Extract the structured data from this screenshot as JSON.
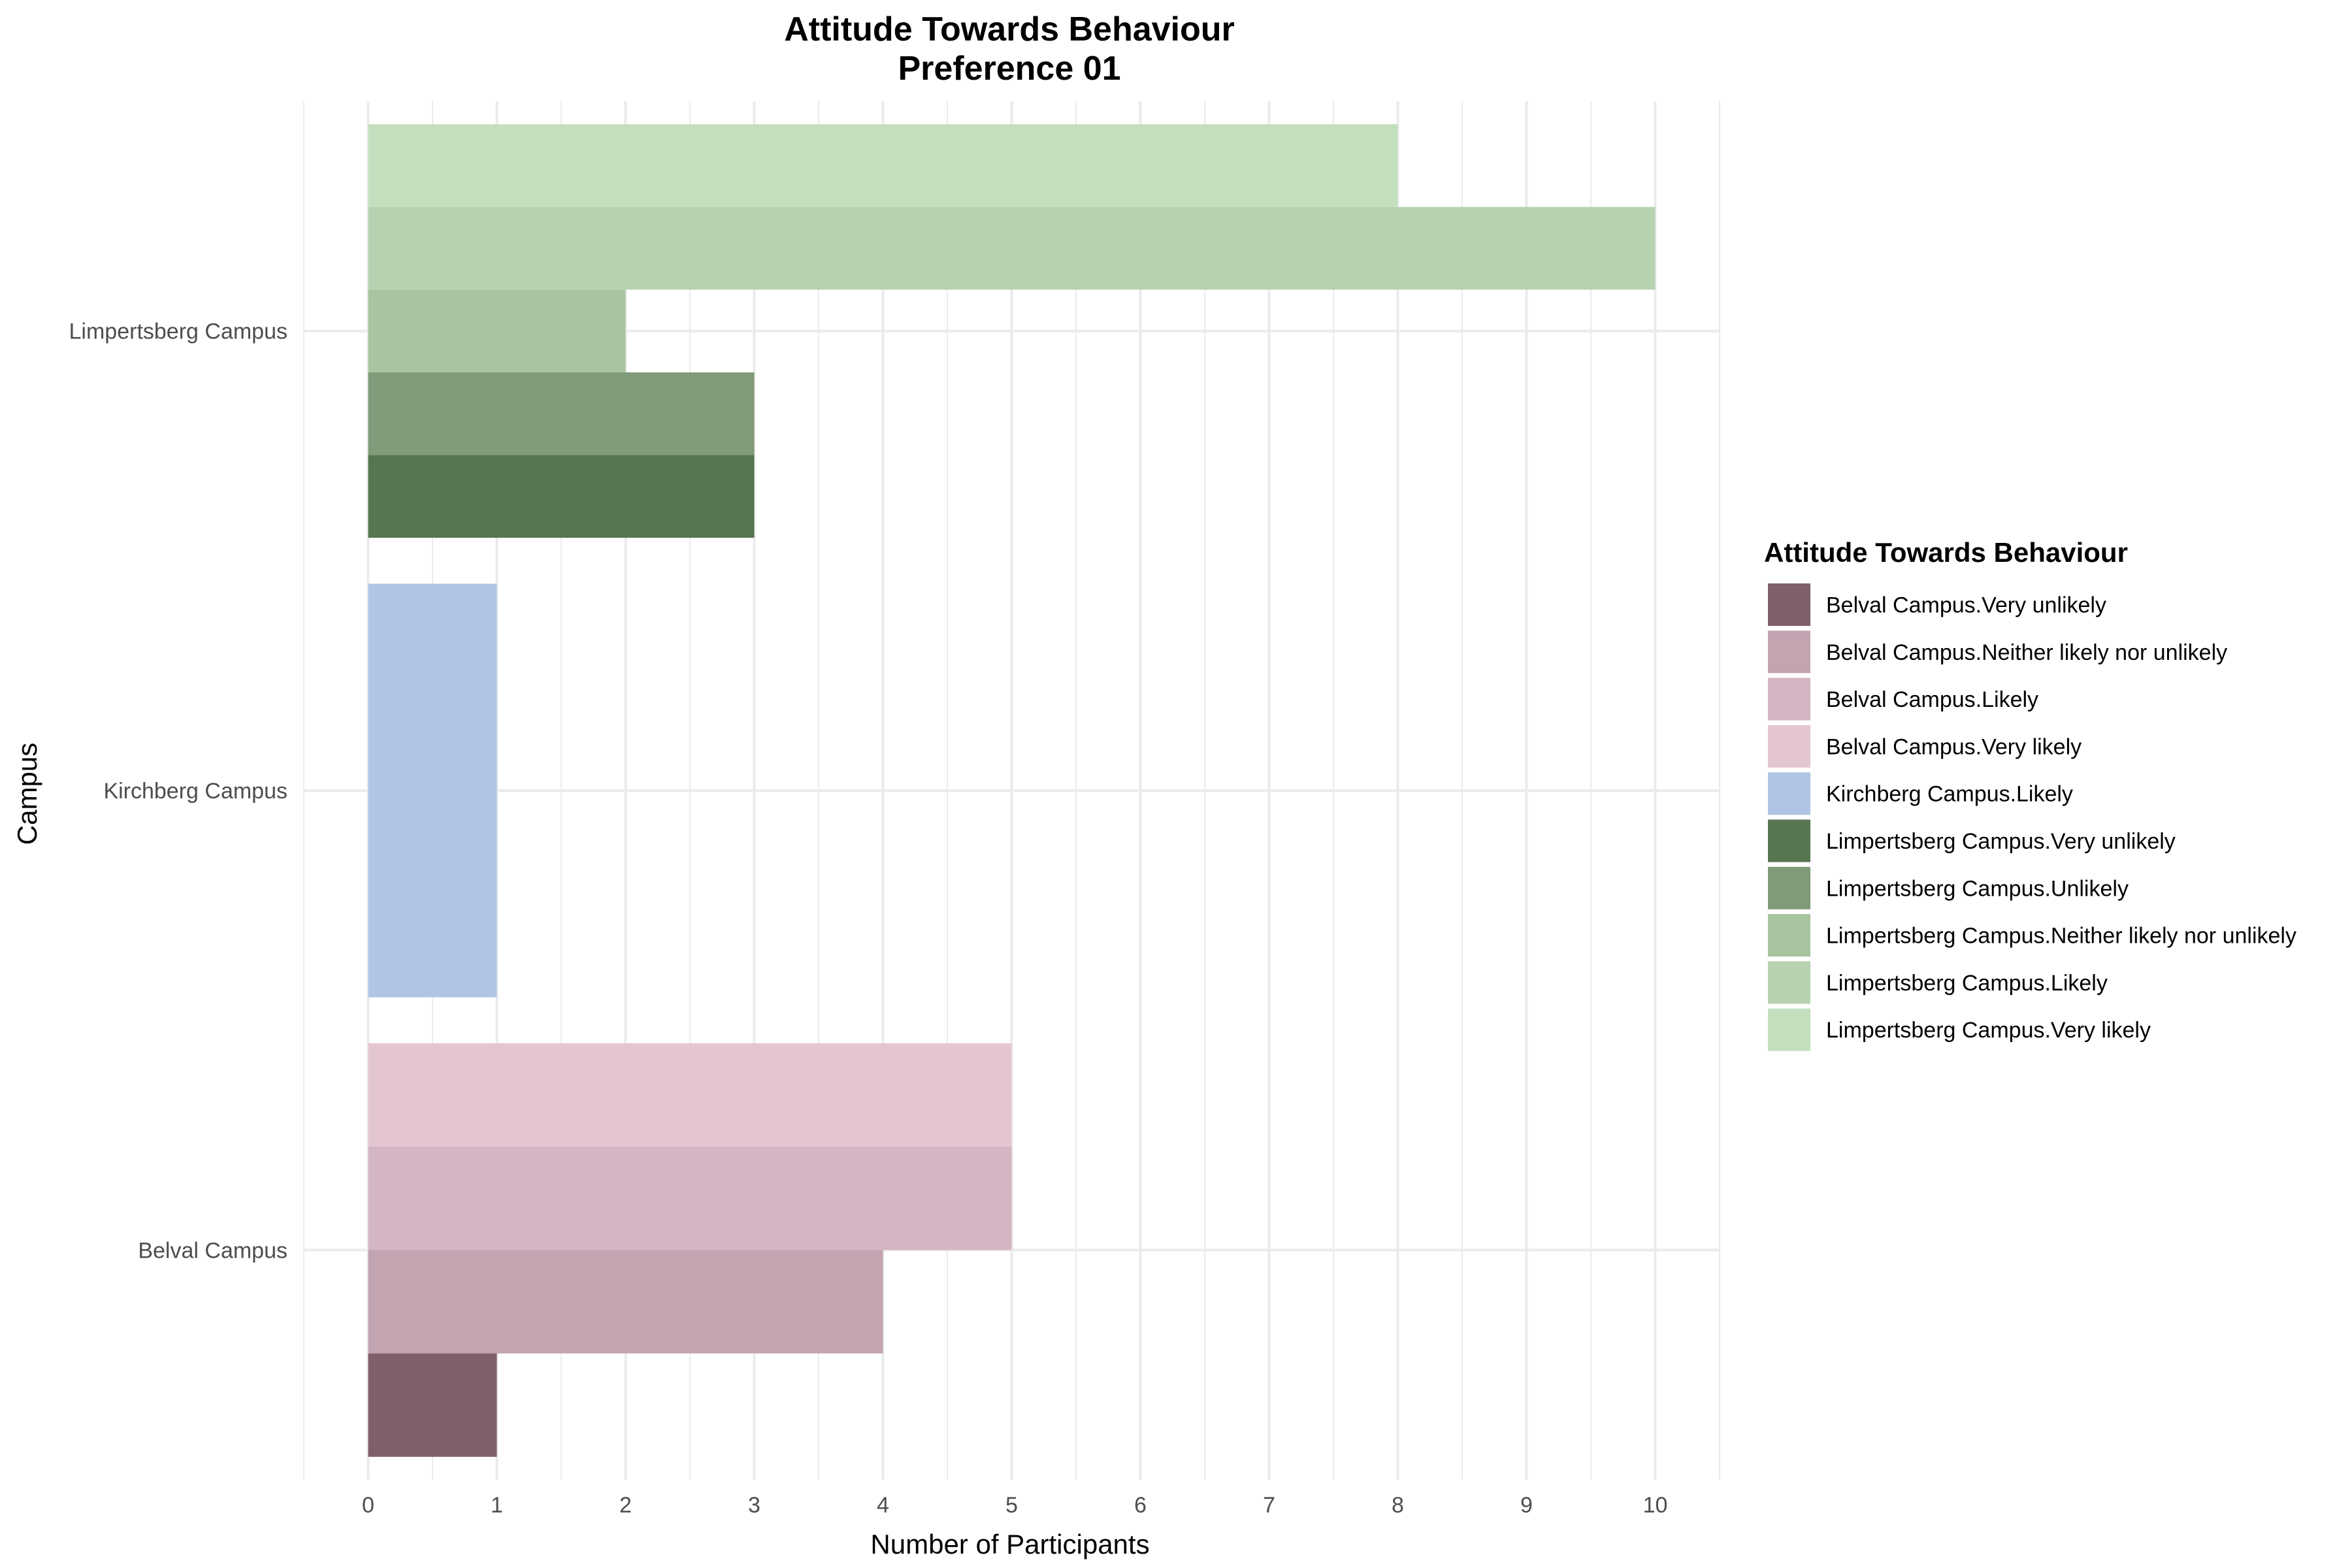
{
  "chart_data": {
    "type": "bar",
    "orientation": "horizontal",
    "title": "Attitude Towards Behaviour",
    "subtitle": "Preference 01",
    "xlabel": "Number of Participants",
    "ylabel": "Campus",
    "xlim": [
      -0.5,
      10.5
    ],
    "x_ticks": [
      0,
      1,
      2,
      3,
      4,
      5,
      6,
      7,
      8,
      9,
      10
    ],
    "grid": true,
    "legend_position": "right",
    "legend_title": "Attitude Towards Behaviour",
    "categories": [
      "Limpertsberg Campus",
      "Kirchberg Campus",
      "Belval Campus"
    ],
    "series": [
      {
        "name": "Belval Campus.Very unlikely",
        "category": "Belval Campus",
        "value": 1,
        "color": "#7f5f6b"
      },
      {
        "name": "Belval Campus.Neither likely nor unlikely",
        "category": "Belval Campus",
        "value": 4,
        "color": "#c3a4b1"
      },
      {
        "name": "Belval Campus.Likely",
        "category": "Belval Campus",
        "value": 5,
        "color": "#d4b5c3"
      },
      {
        "name": "Belval Campus.Very likely",
        "category": "Belval Campus",
        "value": 5,
        "color": "#e4c6d3"
      },
      {
        "name": "Kirchberg Campus.Likely",
        "category": "Kirchberg Campus",
        "value": 1,
        "color": "#b0c4e4"
      },
      {
        "name": "Limpertsberg Campus.Very unlikely",
        "category": "Limpertsberg Campus",
        "value": 3,
        "color": "#567550"
      },
      {
        "name": "Limpertsberg Campus.Unlikely",
        "category": "Limpertsberg Campus",
        "value": 3,
        "color": "#819a7a"
      },
      {
        "name": "Limpertsberg Campus.Neither likely nor unlikely",
        "category": "Limpertsberg Campus",
        "value": 2,
        "color": "#a8c4a0"
      },
      {
        "name": "Limpertsberg Campus.Likely",
        "category": "Limpertsberg Campus",
        "value": 10,
        "color": "#b6d2b0"
      },
      {
        "name": "Limpertsberg Campus.Very likely",
        "category": "Limpertsberg Campus",
        "value": 8,
        "color": "#c4dfbe"
      }
    ]
  }
}
